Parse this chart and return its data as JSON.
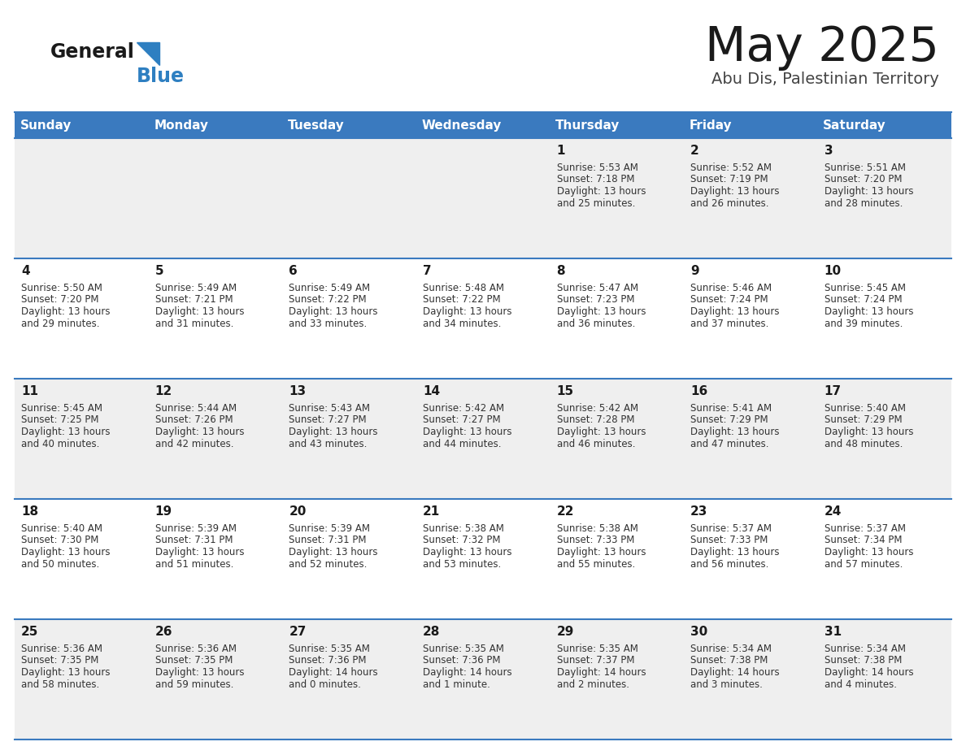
{
  "title": "May 2025",
  "subtitle": "Abu Dis, Palestinian Territory",
  "days_of_week": [
    "Sunday",
    "Monday",
    "Tuesday",
    "Wednesday",
    "Thursday",
    "Friday",
    "Saturday"
  ],
  "header_bg": "#3a7abf",
  "header_text": "#ffffff",
  "row_bg_odd": "#efefef",
  "row_bg_even": "#ffffff",
  "border_color": "#3a7abf",
  "calendar_data": [
    [
      null,
      null,
      null,
      null,
      {
        "day": "1",
        "sunrise": "5:53 AM",
        "sunset": "7:18 PM",
        "dl1": "Daylight: 13 hours",
        "dl2": "and 25 minutes."
      },
      {
        "day": "2",
        "sunrise": "5:52 AM",
        "sunset": "7:19 PM",
        "dl1": "Daylight: 13 hours",
        "dl2": "and 26 minutes."
      },
      {
        "day": "3",
        "sunrise": "5:51 AM",
        "sunset": "7:20 PM",
        "dl1": "Daylight: 13 hours",
        "dl2": "and 28 minutes."
      }
    ],
    [
      {
        "day": "4",
        "sunrise": "5:50 AM",
        "sunset": "7:20 PM",
        "dl1": "Daylight: 13 hours",
        "dl2": "and 29 minutes."
      },
      {
        "day": "5",
        "sunrise": "5:49 AM",
        "sunset": "7:21 PM",
        "dl1": "Daylight: 13 hours",
        "dl2": "and 31 minutes."
      },
      {
        "day": "6",
        "sunrise": "5:49 AM",
        "sunset": "7:22 PM",
        "dl1": "Daylight: 13 hours",
        "dl2": "and 33 minutes."
      },
      {
        "day": "7",
        "sunrise": "5:48 AM",
        "sunset": "7:22 PM",
        "dl1": "Daylight: 13 hours",
        "dl2": "and 34 minutes."
      },
      {
        "day": "8",
        "sunrise": "5:47 AM",
        "sunset": "7:23 PM",
        "dl1": "Daylight: 13 hours",
        "dl2": "and 36 minutes."
      },
      {
        "day": "9",
        "sunrise": "5:46 AM",
        "sunset": "7:24 PM",
        "dl1": "Daylight: 13 hours",
        "dl2": "and 37 minutes."
      },
      {
        "day": "10",
        "sunrise": "5:45 AM",
        "sunset": "7:24 PM",
        "dl1": "Daylight: 13 hours",
        "dl2": "and 39 minutes."
      }
    ],
    [
      {
        "day": "11",
        "sunrise": "5:45 AM",
        "sunset": "7:25 PM",
        "dl1": "Daylight: 13 hours",
        "dl2": "and 40 minutes."
      },
      {
        "day": "12",
        "sunrise": "5:44 AM",
        "sunset": "7:26 PM",
        "dl1": "Daylight: 13 hours",
        "dl2": "and 42 minutes."
      },
      {
        "day": "13",
        "sunrise": "5:43 AM",
        "sunset": "7:27 PM",
        "dl1": "Daylight: 13 hours",
        "dl2": "and 43 minutes."
      },
      {
        "day": "14",
        "sunrise": "5:42 AM",
        "sunset": "7:27 PM",
        "dl1": "Daylight: 13 hours",
        "dl2": "and 44 minutes."
      },
      {
        "day": "15",
        "sunrise": "5:42 AM",
        "sunset": "7:28 PM",
        "dl1": "Daylight: 13 hours",
        "dl2": "and 46 minutes."
      },
      {
        "day": "16",
        "sunrise": "5:41 AM",
        "sunset": "7:29 PM",
        "dl1": "Daylight: 13 hours",
        "dl2": "and 47 minutes."
      },
      {
        "day": "17",
        "sunrise": "5:40 AM",
        "sunset": "7:29 PM",
        "dl1": "Daylight: 13 hours",
        "dl2": "and 48 minutes."
      }
    ],
    [
      {
        "day": "18",
        "sunrise": "5:40 AM",
        "sunset": "7:30 PM",
        "dl1": "Daylight: 13 hours",
        "dl2": "and 50 minutes."
      },
      {
        "day": "19",
        "sunrise": "5:39 AM",
        "sunset": "7:31 PM",
        "dl1": "Daylight: 13 hours",
        "dl2": "and 51 minutes."
      },
      {
        "day": "20",
        "sunrise": "5:39 AM",
        "sunset": "7:31 PM",
        "dl1": "Daylight: 13 hours",
        "dl2": "and 52 minutes."
      },
      {
        "day": "21",
        "sunrise": "5:38 AM",
        "sunset": "7:32 PM",
        "dl1": "Daylight: 13 hours",
        "dl2": "and 53 minutes."
      },
      {
        "day": "22",
        "sunrise": "5:38 AM",
        "sunset": "7:33 PM",
        "dl1": "Daylight: 13 hours",
        "dl2": "and 55 minutes."
      },
      {
        "day": "23",
        "sunrise": "5:37 AM",
        "sunset": "7:33 PM",
        "dl1": "Daylight: 13 hours",
        "dl2": "and 56 minutes."
      },
      {
        "day": "24",
        "sunrise": "5:37 AM",
        "sunset": "7:34 PM",
        "dl1": "Daylight: 13 hours",
        "dl2": "and 57 minutes."
      }
    ],
    [
      {
        "day": "25",
        "sunrise": "5:36 AM",
        "sunset": "7:35 PM",
        "dl1": "Daylight: 13 hours",
        "dl2": "and 58 minutes."
      },
      {
        "day": "26",
        "sunrise": "5:36 AM",
        "sunset": "7:35 PM",
        "dl1": "Daylight: 13 hours",
        "dl2": "and 59 minutes."
      },
      {
        "day": "27",
        "sunrise": "5:35 AM",
        "sunset": "7:36 PM",
        "dl1": "Daylight: 14 hours",
        "dl2": "and 0 minutes."
      },
      {
        "day": "28",
        "sunrise": "5:35 AM",
        "sunset": "7:36 PM",
        "dl1": "Daylight: 14 hours",
        "dl2": "and 1 minute."
      },
      {
        "day": "29",
        "sunrise": "5:35 AM",
        "sunset": "7:37 PM",
        "dl1": "Daylight: 14 hours",
        "dl2": "and 2 minutes."
      },
      {
        "day": "30",
        "sunrise": "5:34 AM",
        "sunset": "7:38 PM",
        "dl1": "Daylight: 14 hours",
        "dl2": "and 3 minutes."
      },
      {
        "day": "31",
        "sunrise": "5:34 AM",
        "sunset": "7:38 PM",
        "dl1": "Daylight: 14 hours",
        "dl2": "and 4 minutes."
      }
    ]
  ]
}
